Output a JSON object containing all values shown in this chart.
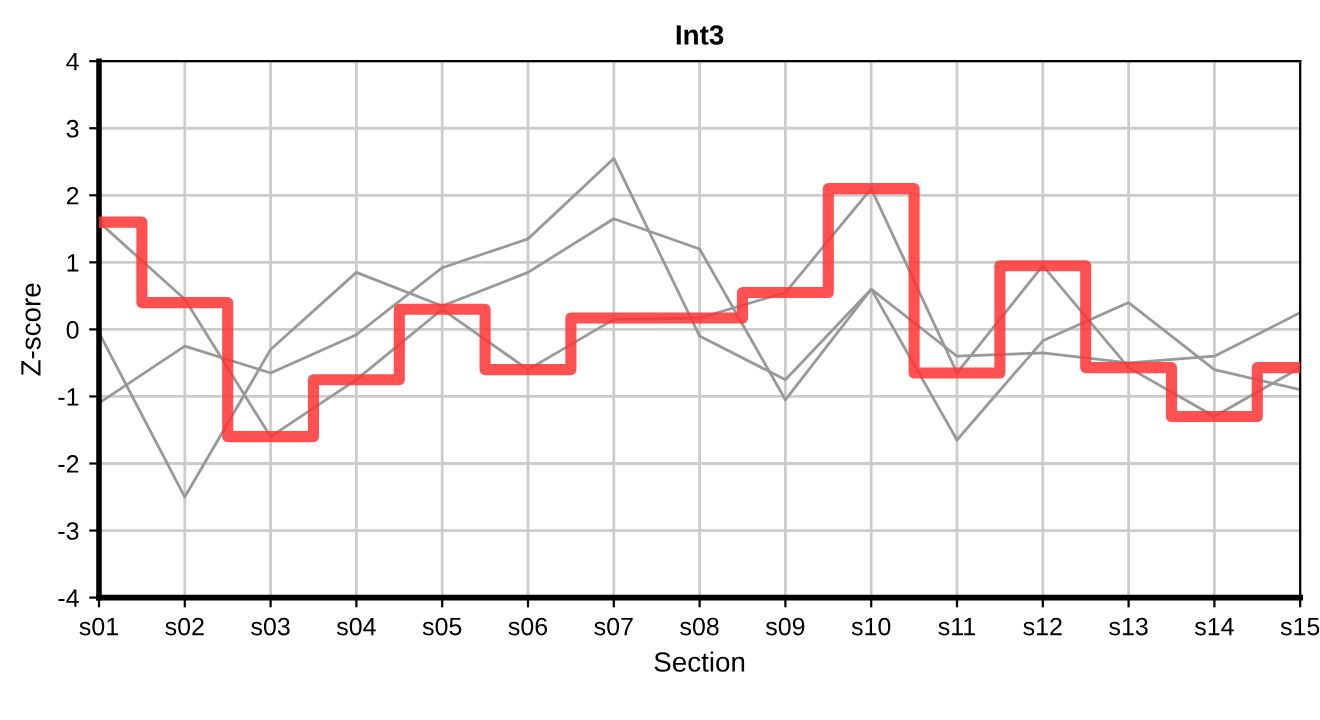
{
  "chart_data": {
    "type": "line",
    "title": "Int3",
    "xlabel": "Section",
    "ylabel": "Z-score",
    "categories": [
      "s01",
      "s02",
      "s03",
      "s04",
      "s05",
      "s06",
      "s07",
      "s08",
      "s09",
      "s10",
      "s11",
      "s12",
      "s13",
      "s14",
      "s15"
    ],
    "series": [
      {
        "color": "#999999",
        "values": [
          1.6,
          0.45,
          -1.6,
          -0.75,
          0.3,
          -0.6,
          0.15,
          0.17,
          0.55,
          2.1,
          -0.65,
          0.95,
          -0.57,
          -1.3,
          -0.57
        ]
      },
      {
        "color": "#999999",
        "values": [
          -1.1,
          -0.25,
          -0.65,
          -0.08,
          0.92,
          1.35,
          2.55,
          -0.1,
          -0.75,
          0.6,
          -0.4,
          -0.35,
          -0.5,
          -0.4,
          0.25
        ]
      },
      {
        "color": "#999999",
        "values": [
          -0.05,
          -2.5,
          -0.3,
          0.85,
          0.35,
          0.85,
          1.65,
          1.2,
          -1.05,
          0.6,
          -1.65,
          -0.17,
          0.4,
          -0.6,
          -0.9
        ]
      },
      {
        "type": "step",
        "color": "#ff3333",
        "values": [
          1.6,
          0.4,
          -1.6,
          -0.75,
          0.3,
          -0.6,
          0.17,
          0.17,
          0.55,
          2.1,
          -0.65,
          0.95,
          -0.57,
          -1.3,
          -0.57
        ]
      }
    ],
    "ylim": [
      -4,
      4
    ],
    "yticks": [
      -4,
      -3,
      -2,
      -1,
      0,
      1,
      2,
      3,
      4
    ],
    "grid": true,
    "marker": "none"
  }
}
